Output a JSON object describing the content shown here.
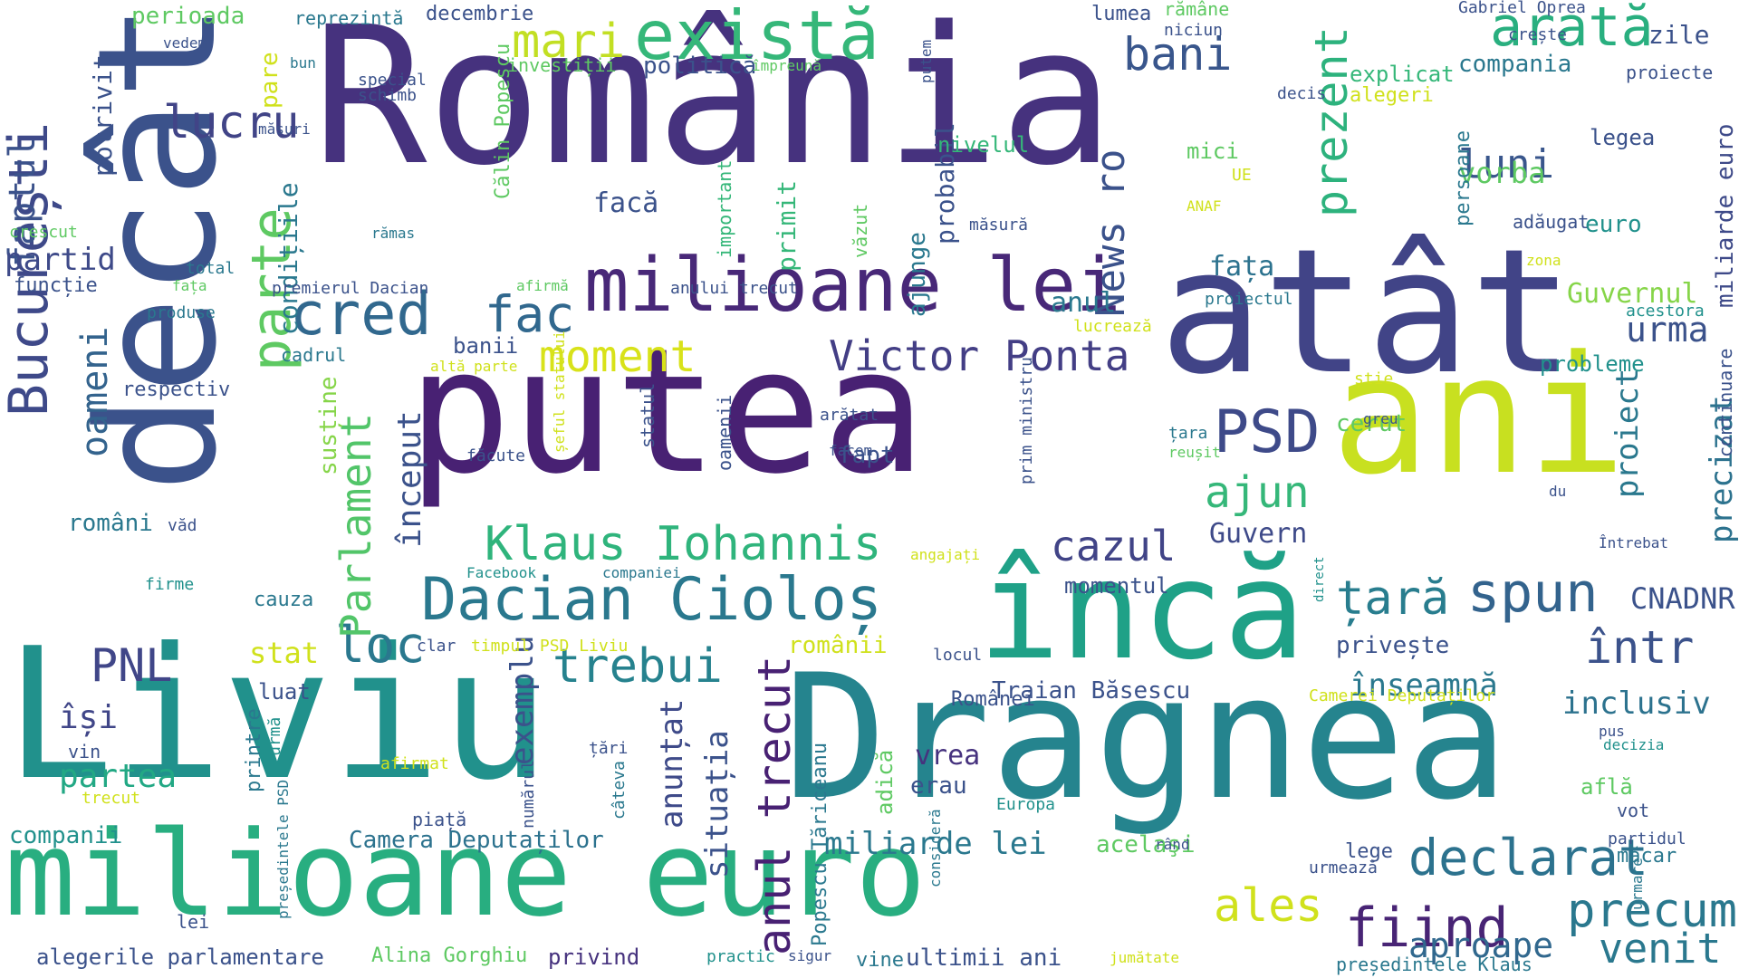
{
  "palette": {
    "deep_purple": "#46327e",
    "indigo": "#3b528b",
    "blue": "#365c8d",
    "steel": "#2c728e",
    "teal": "#21918c",
    "green_teal": "#28ae80",
    "green": "#5ec962",
    "lime": "#addc30",
    "yellow": "#d0e11c",
    "dark": "#440154"
  },
  "words": [
    {
      "text": "România",
      "color": "#46327e"
    },
    {
      "text": "decât",
      "color": "#3b528b"
    },
    {
      "text": "putea",
      "color": "#482173"
    },
    {
      "text": "atât",
      "color": "#414487"
    },
    {
      "text": "ani",
      "color": "#c8e020"
    },
    {
      "text": "Liviu",
      "color": "#21918c"
    },
    {
      "text": "Dragnea",
      "color": "#25848e"
    },
    {
      "text": "milioane euro",
      "color": "#28ae80"
    },
    {
      "text": "încă",
      "color": "#1fa187"
    },
    {
      "text": "milioane lei",
      "color": "#482878"
    },
    {
      "text": "există",
      "color": "#35b779"
    },
    {
      "text": "arată",
      "color": "#29af7f"
    },
    {
      "text": "București",
      "color": "#3e4989"
    },
    {
      "text": "cred",
      "color": "#31688e"
    },
    {
      "text": "fac",
      "color": "#31688e"
    },
    {
      "text": "parte",
      "color": "#5ec962"
    },
    {
      "text": "Dacian Cioloș",
      "color": "#2a788e"
    },
    {
      "text": "Klaus Iohannis",
      "color": "#2fb47c"
    },
    {
      "text": "Victor Ponta",
      "color": "#433e85"
    },
    {
      "text": "PSD",
      "color": "#3e4a89"
    },
    {
      "text": "bani",
      "color": "#39568c"
    },
    {
      "text": "mari",
      "color": "#c2df23"
    },
    {
      "text": "lucru",
      "color": "#414487"
    },
    {
      "text": "loc",
      "color": "#2a788e"
    },
    {
      "text": "trebui",
      "color": "#26828e"
    },
    {
      "text": "PNL",
      "color": "#404688"
    },
    {
      "text": "spun",
      "color": "#33638d"
    },
    {
      "text": "țară",
      "color": "#287d8e"
    },
    {
      "text": "într",
      "color": "#3b528b"
    },
    {
      "text": "declarat",
      "color": "#2c728e"
    },
    {
      "text": "fiind",
      "color": "#482475"
    },
    {
      "text": "precum",
      "color": "#2a788e"
    },
    {
      "text": "venit",
      "color": "#2a788e"
    },
    {
      "text": "aproape",
      "color": "#31688e"
    },
    {
      "text": "ales",
      "color": "#d0e11c"
    },
    {
      "text": "anul trecut",
      "color": "#482173"
    },
    {
      "text": "prezent",
      "color": "#2db27d"
    },
    {
      "text": "cazul",
      "color": "#414487"
    },
    {
      "text": "ajun",
      "color": "#35b779"
    },
    {
      "text": "moment",
      "color": "#d8e219"
    },
    {
      "text": "Parlament",
      "color": "#52c569"
    },
    {
      "text": "început",
      "color": "#3b528b"
    },
    {
      "text": "oameni",
      "color": "#33638d"
    },
    {
      "text": "faptul",
      "color": "#3b528b"
    },
    {
      "text": "partid",
      "color": "#3e4a89"
    },
    {
      "text": "partea",
      "color": "#22a884"
    },
    {
      "text": "își",
      "color": "#404688"
    },
    {
      "text": "anunțat",
      "color": "#3e4a89"
    },
    {
      "text": "exemplu",
      "color": "#3b528b"
    },
    {
      "text": "situația",
      "color": "#3b528b"
    },
    {
      "text": "luni",
      "color": "#39568c"
    },
    {
      "text": "vorba",
      "color": "#5ec962"
    },
    {
      "text": "fața",
      "color": "#2c728e"
    },
    {
      "text": "Guvernul",
      "color": "#86d549"
    },
    {
      "text": "urma",
      "color": "#3b528b"
    },
    {
      "text": "Guvern",
      "color": "#3e4a89"
    },
    {
      "text": "CNADNR",
      "color": "#3b528b"
    },
    {
      "text": "înseamnă",
      "color": "#2a788e"
    },
    {
      "text": "inclusiv",
      "color": "#2c728e"
    },
    {
      "text": "precizat",
      "color": "#2c728e"
    },
    {
      "text": "proiect",
      "color": "#2a788e"
    },
    {
      "text": "News ro",
      "color": "#3b528b"
    },
    {
      "text": "Camera Deputaților",
      "color": "#2c728e"
    },
    {
      "text": "miliarde lei",
      "color": "#2a788e"
    },
    {
      "text": "Traian Băsescu",
      "color": "#3b528b"
    },
    {
      "text": "alegerile parlamentare",
      "color": "#3b528b"
    },
    {
      "text": "Alina Gorghiu",
      "color": "#5ec962"
    },
    {
      "text": "privind",
      "color": "#46327e"
    },
    {
      "text": "ultimii ani",
      "color": "#3b528b"
    },
    {
      "text": "președintele Klaus",
      "color": "#2a788e"
    },
    {
      "text": "companii",
      "color": "#21918c"
    },
    {
      "text": "mici",
      "color": "#5ec962"
    },
    {
      "text": "legea",
      "color": "#3b528b"
    },
    {
      "text": "euro",
      "color": "#21918c"
    },
    {
      "text": "miliarde euro",
      "color": "#3e4a89"
    },
    {
      "text": "zile",
      "color": "#3b528b"
    },
    {
      "text": "proiecte",
      "color": "#3b528b"
    },
    {
      "text": "compania",
      "color": "#2a788e"
    },
    {
      "text": "explicat",
      "color": "#35b779"
    },
    {
      "text": "politică",
      "color": "#3b528b"
    },
    {
      "text": "investiții",
      "color": "#5ec962"
    },
    {
      "text": "decembrie",
      "color": "#3b528b"
    },
    {
      "text": "reprezintă",
      "color": "#2a788e"
    },
    {
      "text": "perioada",
      "color": "#5ec962"
    },
    {
      "text": "potrivit",
      "color": "#3b528b"
    },
    {
      "text": "condițiile",
      "color": "#2a788e"
    },
    {
      "text": "susține",
      "color": "#86d549"
    },
    {
      "text": "respectiv",
      "color": "#3b528b"
    },
    {
      "text": "funcție",
      "color": "#3b528b"
    },
    {
      "text": "primit",
      "color": "#35b779"
    },
    {
      "text": "probabil",
      "color": "#3b528b"
    },
    {
      "text": "ajunge",
      "color": "#2a788e"
    },
    {
      "text": "facă",
      "color": "#3b528b"
    },
    {
      "text": "nivelul",
      "color": "#35b779"
    },
    {
      "text": "anul",
      "color": "#2a788e"
    },
    {
      "text": "banii",
      "color": "#3b528b"
    },
    {
      "text": "probleme",
      "color": "#21918c"
    },
    {
      "text": "cerut",
      "color": "#5ec962"
    },
    {
      "text": "fapt",
      "color": "#3b528b"
    },
    {
      "text": "momentul",
      "color": "#3b528b"
    },
    {
      "text": "stat",
      "color": "#d0e11c"
    },
    {
      "text": "românii",
      "color": "#d0e11c"
    },
    {
      "text": "privește",
      "color": "#3b528b"
    },
    {
      "text": "vrea",
      "color": "#46327e"
    },
    {
      "text": "erau",
      "color": "#3b528b"
    },
    {
      "text": "acelaşi",
      "color": "#5ec962"
    },
    {
      "text": "lege",
      "color": "#3b528b"
    },
    {
      "text": "români",
      "color": "#2a788e"
    },
    {
      "text": "luat",
      "color": "#3b528b"
    },
    {
      "text": "cauza",
      "color": "#2a788e"
    },
    {
      "text": "lumea",
      "color": "#3b528b"
    },
    {
      "text": "rămâne",
      "color": "#5ec962"
    },
    {
      "text": "crește",
      "color": "#3b528b"
    },
    {
      "text": "Gabriel Oprea",
      "color": "#3b528b"
    },
    {
      "text": "alegeri",
      "color": "#d0e11c"
    },
    {
      "text": "adăugat",
      "color": "#3b528b"
    },
    {
      "text": "persoane",
      "color": "#2a788e"
    },
    {
      "text": "continuare",
      "color": "#3b528b"
    },
    {
      "text": "măcar",
      "color": "#2a788e"
    },
    {
      "text": "Europa",
      "color": "#21918c"
    },
    {
      "text": "afirmat",
      "color": "#d0e11c"
    },
    {
      "text": "piață",
      "color": "#3b528b"
    },
    {
      "text": "Popescu Tăriceanu",
      "color": "#2a788e"
    },
    {
      "text": "Facebook",
      "color": "#21918c"
    },
    {
      "text": "companiei",
      "color": "#2a788e"
    },
    {
      "text": "firme",
      "color": "#21918c"
    },
    {
      "text": "vin",
      "color": "#3b528b"
    },
    {
      "text": "trecut",
      "color": "#d0e11c"
    },
    {
      "text": "lei",
      "color": "#3b528b"
    },
    {
      "text": "văd",
      "color": "#3b528b"
    },
    {
      "text": "produse",
      "color": "#2a788e"
    },
    {
      "text": "cadrul",
      "color": "#2a788e"
    },
    {
      "text": "crescut",
      "color": "#5ec962"
    },
    {
      "text": "vedem",
      "color": "#3b528b"
    },
    {
      "text": "bun",
      "color": "#2a788e"
    },
    {
      "text": "măsuri",
      "color": "#3b528b"
    },
    {
      "text": "special",
      "color": "#3b528b"
    },
    {
      "text": "schimb",
      "color": "#3b528b"
    },
    {
      "text": "Călin Popescu",
      "color": "#5ec962"
    },
    {
      "text": "împreună",
      "color": "#5ec962"
    },
    {
      "text": "decis",
      "color": "#3b528b"
    },
    {
      "text": "putem",
      "color": "#3b528b"
    },
    {
      "text": "niciun",
      "color": "#3b528b"
    },
    {
      "text": "pare",
      "color": "#d0e11c"
    },
    {
      "text": "rămas",
      "color": "#2a788e"
    },
    {
      "text": "total",
      "color": "#2a788e"
    },
    {
      "text": "fața",
      "color": "#5ec962"
    },
    {
      "text": "premierul Dacian",
      "color": "#3b528b"
    },
    {
      "text": "afirmă",
      "color": "#5ec962"
    },
    {
      "text": "anului trecut",
      "color": "#3b528b"
    },
    {
      "text": "important",
      "color": "#35b779"
    },
    {
      "text": "văzut",
      "color": "#5ec962"
    },
    {
      "text": "măsură",
      "color": "#3b528b"
    },
    {
      "text": "UE",
      "color": "#d0e11c"
    },
    {
      "text": "ANAF",
      "color": "#d0e11c"
    },
    {
      "text": "zona",
      "color": "#d0e11c"
    },
    {
      "text": "acestora",
      "color": "#21918c"
    },
    {
      "text": "proiectul",
      "color": "#2a788e"
    },
    {
      "text": "lucrează",
      "color": "#d0e11c"
    },
    {
      "text": "altă parte",
      "color": "#d0e11c"
    },
    {
      "text": "prim ministru",
      "color": "#3b528b"
    },
    {
      "text": "știe",
      "color": "#d0e11c"
    },
    {
      "text": "greu",
      "color": "#3b528b"
    },
    {
      "text": "reușit",
      "color": "#5ec962"
    },
    {
      "text": "țara",
      "color": "#2a788e"
    },
    {
      "text": "arătat",
      "color": "#3b528b"
    },
    {
      "text": "facem",
      "color": "#3b528b"
    },
    {
      "text": "statul",
      "color": "#3b528b"
    },
    {
      "text": "făcute",
      "color": "#3b528b"
    },
    {
      "text": "oamenii",
      "color": "#3b528b"
    },
    {
      "text": "șeful statului",
      "color": "#d0e11c"
    },
    {
      "text": "angajați",
      "color": "#d0e11c"
    },
    {
      "text": "du",
      "color": "#3b528b"
    },
    {
      "text": "direct",
      "color": "#21918c"
    },
    {
      "text": "Întrebat",
      "color": "#3b528b"
    },
    {
      "text": "locul",
      "color": "#3b528b"
    },
    {
      "text": "timpul PSD Liviu",
      "color": "#d0e11c"
    },
    {
      "text": "clar",
      "color": "#3b528b"
    },
    {
      "text": "Românei",
      "color": "#3b528b"
    },
    {
      "text": "Camerei Deputaților",
      "color": "#d0e11c"
    },
    {
      "text": "țări",
      "color": "#3b528b"
    },
    {
      "text": "numărul",
      "color": "#3b528b"
    },
    {
      "text": "câteva",
      "color": "#2a788e"
    },
    {
      "text": "adică",
      "color": "#5ec962"
    },
    {
      "text": "consideră",
      "color": "#2a788e"
    },
    {
      "text": "pus",
      "color": "#3b528b"
    },
    {
      "text": "decizia",
      "color": "#21918c"
    },
    {
      "text": "află",
      "color": "#5ec962"
    },
    {
      "text": "vot",
      "color": "#3b528b"
    },
    {
      "text": "urmare",
      "color": "#2a788e"
    },
    {
      "text": "partidul",
      "color": "#3b528b"
    },
    {
      "text": "rând",
      "color": "#3b528b"
    },
    {
      "text": "urmează",
      "color": "#3b528b"
    },
    {
      "text": "printre",
      "color": "#2a788e"
    },
    {
      "text": "urmă",
      "color": "#21918c"
    },
    {
      "text": "președintele PSD",
      "color": "#2a788e"
    },
    {
      "text": "practic",
      "color": "#21918c"
    },
    {
      "text": "sigur",
      "color": "#3b528b"
    },
    {
      "text": "vine",
      "color": "#2a788e"
    },
    {
      "text": "jumătate",
      "color": "#d0e11c"
    }
  ]
}
